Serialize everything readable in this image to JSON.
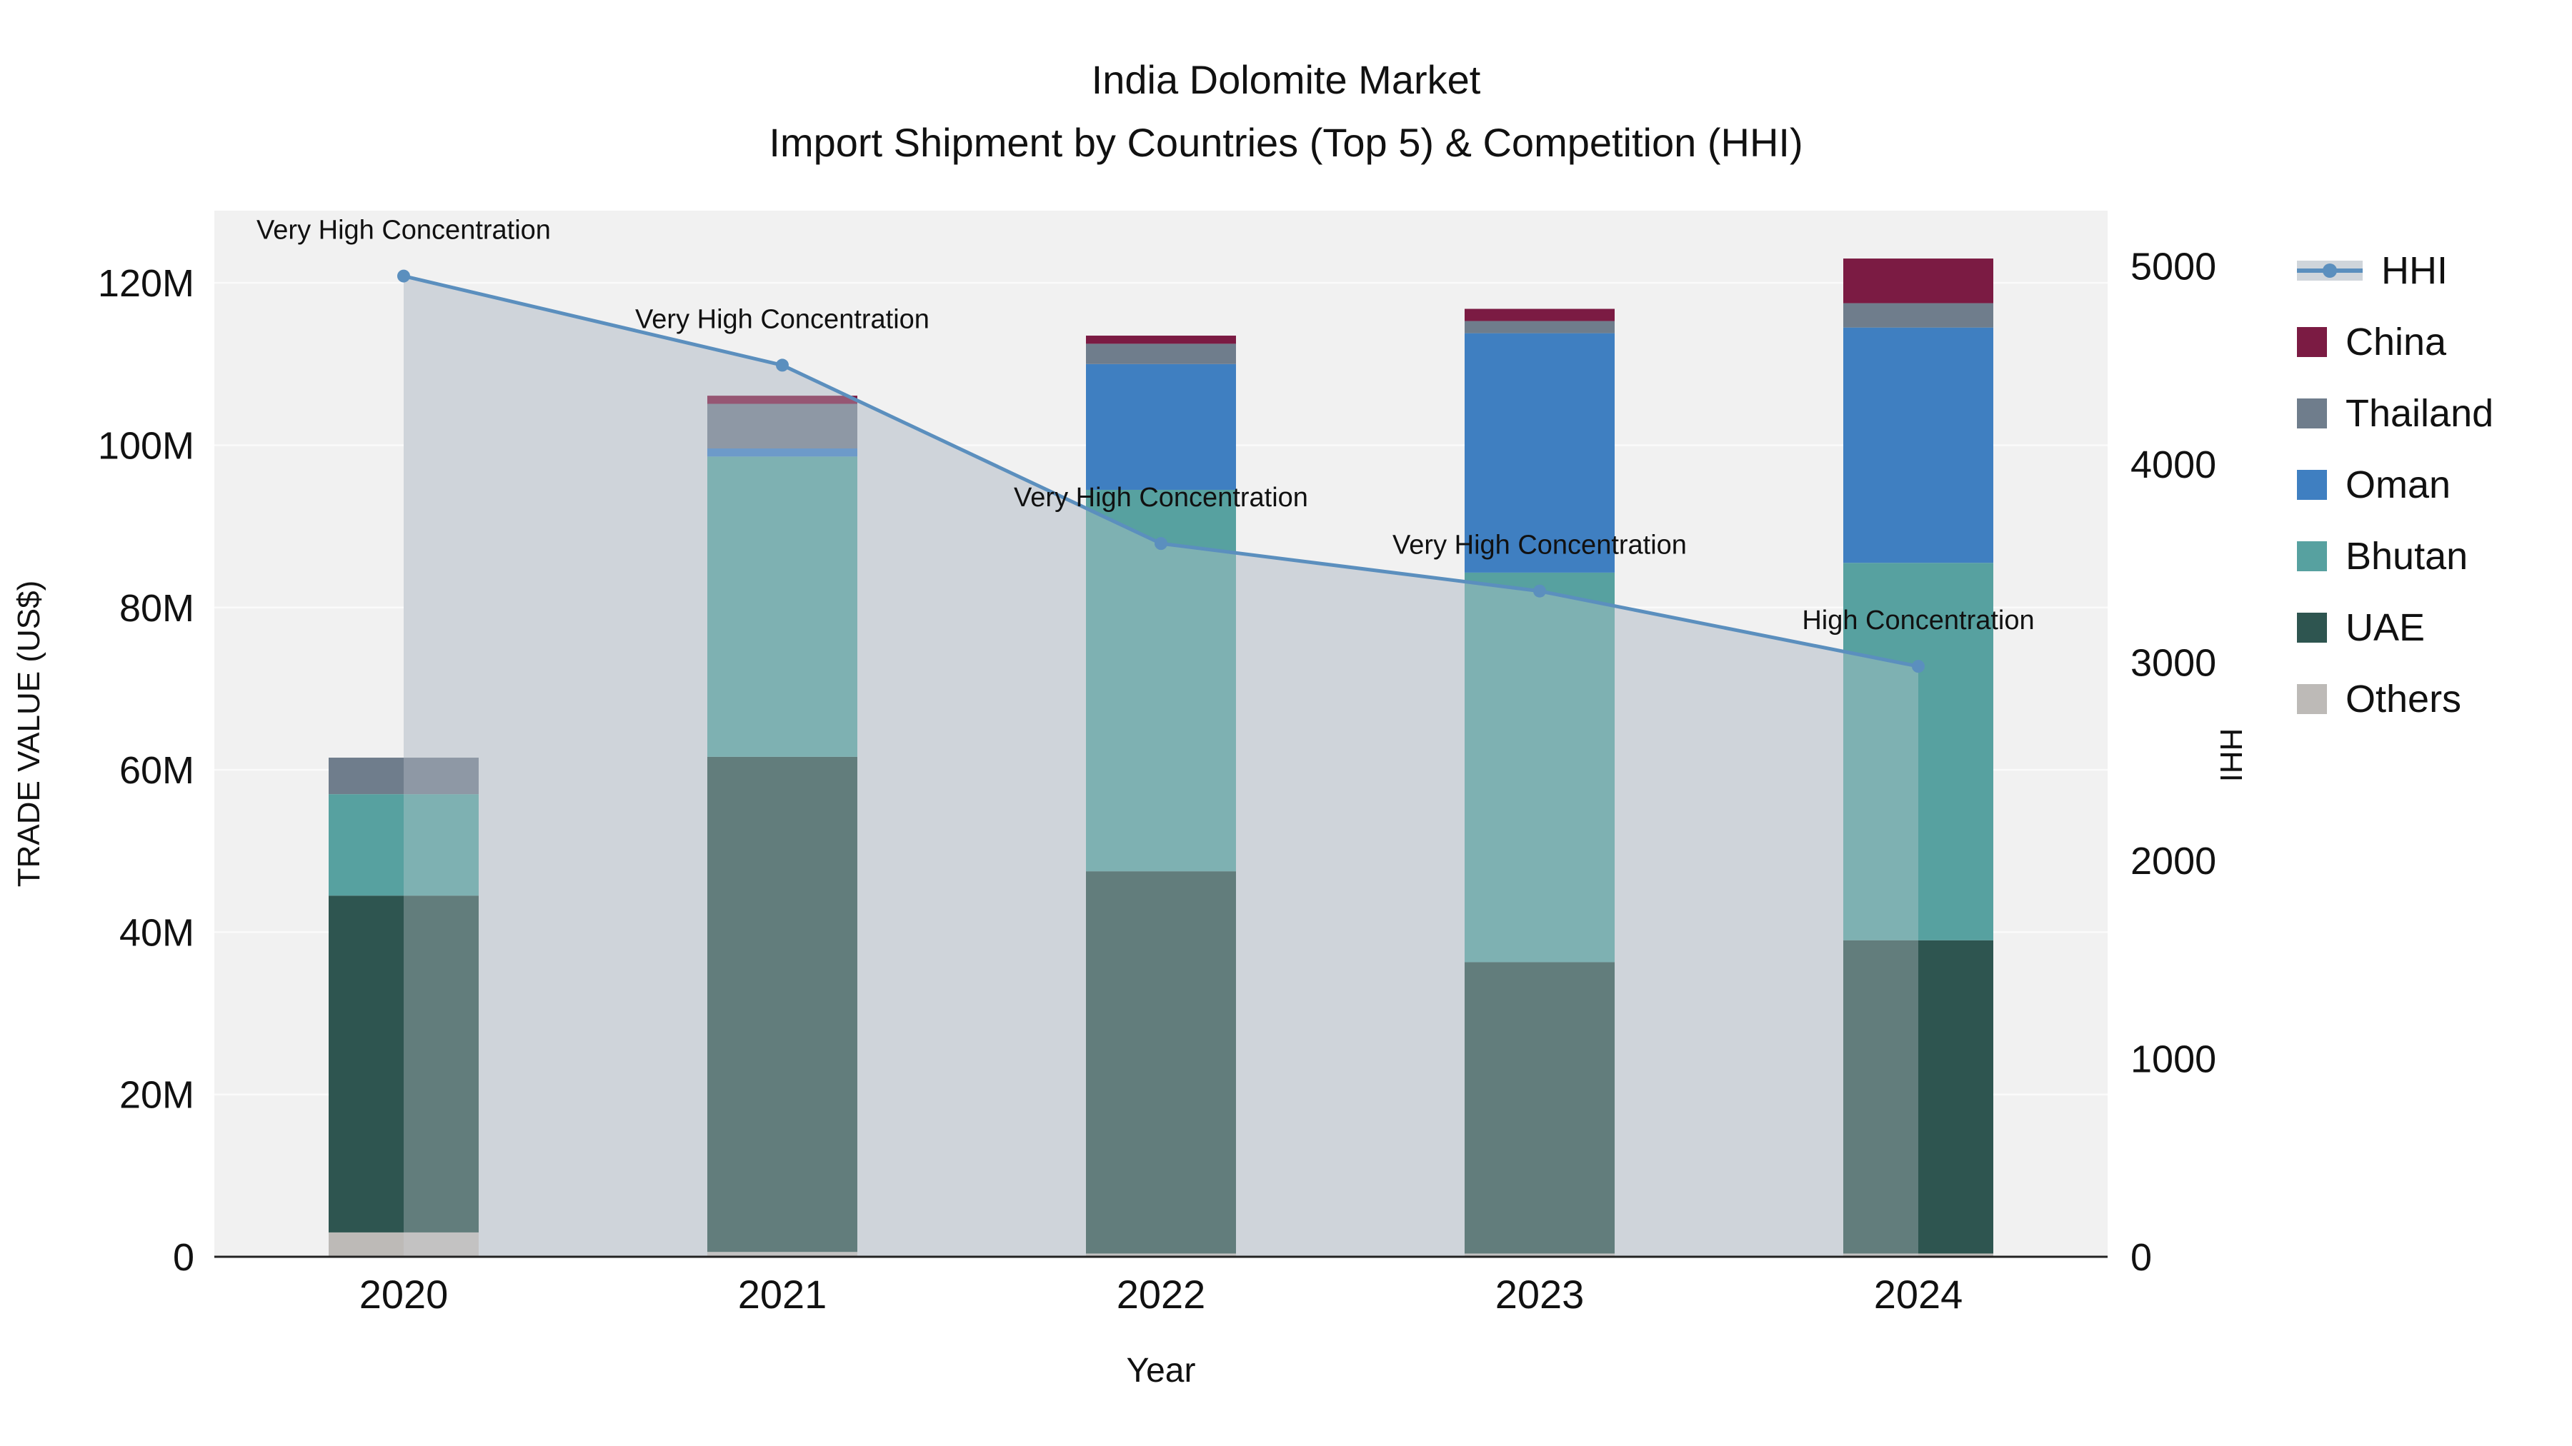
{
  "title": {
    "line1": "India Dolomite Market",
    "line2": "Import Shipment by Countries (Top 5) & Competition (HHI)"
  },
  "axes": {
    "left_title": "TRADE VALUE (US$)",
    "right_title": "HHI",
    "x_title": "Year",
    "left_ticks": [
      {
        "label": "0",
        "value": 0
      },
      {
        "label": "20M",
        "value": 20
      },
      {
        "label": "40M",
        "value": 40
      },
      {
        "label": "60M",
        "value": 60
      },
      {
        "label": "80M",
        "value": 80
      },
      {
        "label": "100M",
        "value": 100
      },
      {
        "label": "120M",
        "value": 120
      }
    ],
    "right_ticks": [
      {
        "label": "0",
        "value": 0
      },
      {
        "label": "1000",
        "value": 1000
      },
      {
        "label": "2000",
        "value": 2000
      },
      {
        "label": "3000",
        "value": 3000
      },
      {
        "label": "4000",
        "value": 4000
      },
      {
        "label": "5000",
        "value": 5000
      }
    ]
  },
  "chart_data": {
    "type": "bar",
    "subtype": "stacked-bars-with-line",
    "title": "India Dolomite Market Import Shipment by Countries (Top 5) & Competition (HHI)",
    "xlabel": "Year",
    "ylabel_left": "TRADE VALUE (US$)",
    "ylabel_right": "HHI",
    "ylim_left_millions": [
      0,
      128.9
    ],
    "ylim_right": [
      0,
      5280
    ],
    "grid": true,
    "legend_position": "right",
    "categories": [
      "2020",
      "2021",
      "2022",
      "2023",
      "2024"
    ],
    "bar_unit": "million US$",
    "series": [
      {
        "name": "Others",
        "color": "#bdbab7",
        "values": [
          3.0,
          0.6,
          0.4,
          0.4,
          0.4
        ]
      },
      {
        "name": "UAE",
        "color": "#2e5550",
        "values": [
          41.5,
          61.0,
          47.1,
          35.9,
          38.6
        ]
      },
      {
        "name": "Bhutan",
        "color": "#57a1a0",
        "values": [
          12.5,
          37.0,
          47.0,
          48.0,
          46.5
        ]
      },
      {
        "name": "Oman",
        "color": "#3f7fc1",
        "values": [
          0.0,
          1.0,
          15.5,
          29.5,
          29.0
        ]
      },
      {
        "name": "Thailand",
        "color": "#6f7d8c",
        "values": [
          4.5,
          5.5,
          2.5,
          1.5,
          3.0
        ]
      },
      {
        "name": "China",
        "color": "#7b1b43",
        "values": [
          0.0,
          1.0,
          1.0,
          1.5,
          5.5
        ]
      }
    ],
    "line": {
      "name": "HHI",
      "color": "#5b8fbe",
      "area_fill_color": "#cfd5db",
      "values": [
        4950,
        4500,
        3600,
        3360,
        2980
      ],
      "annotations": [
        "Very High Concentration",
        "Very High Concentration",
        "Very High Concentration",
        "Very High Concentration",
        "High Concentration"
      ]
    }
  },
  "legend": {
    "items": [
      {
        "label": "HHI",
        "type": "line",
        "color": "#5b8fbe"
      },
      {
        "label": "China",
        "type": "swatch",
        "color": "#7b1b43"
      },
      {
        "label": "Thailand",
        "type": "swatch",
        "color": "#6f7d8c"
      },
      {
        "label": "Oman",
        "type": "swatch",
        "color": "#3f7fc1"
      },
      {
        "label": "Bhutan",
        "type": "swatch",
        "color": "#57a1a0"
      },
      {
        "label": "UAE",
        "type": "swatch",
        "color": "#2e5550"
      },
      {
        "label": "Others",
        "type": "swatch",
        "color": "#bdbab7"
      }
    ]
  }
}
